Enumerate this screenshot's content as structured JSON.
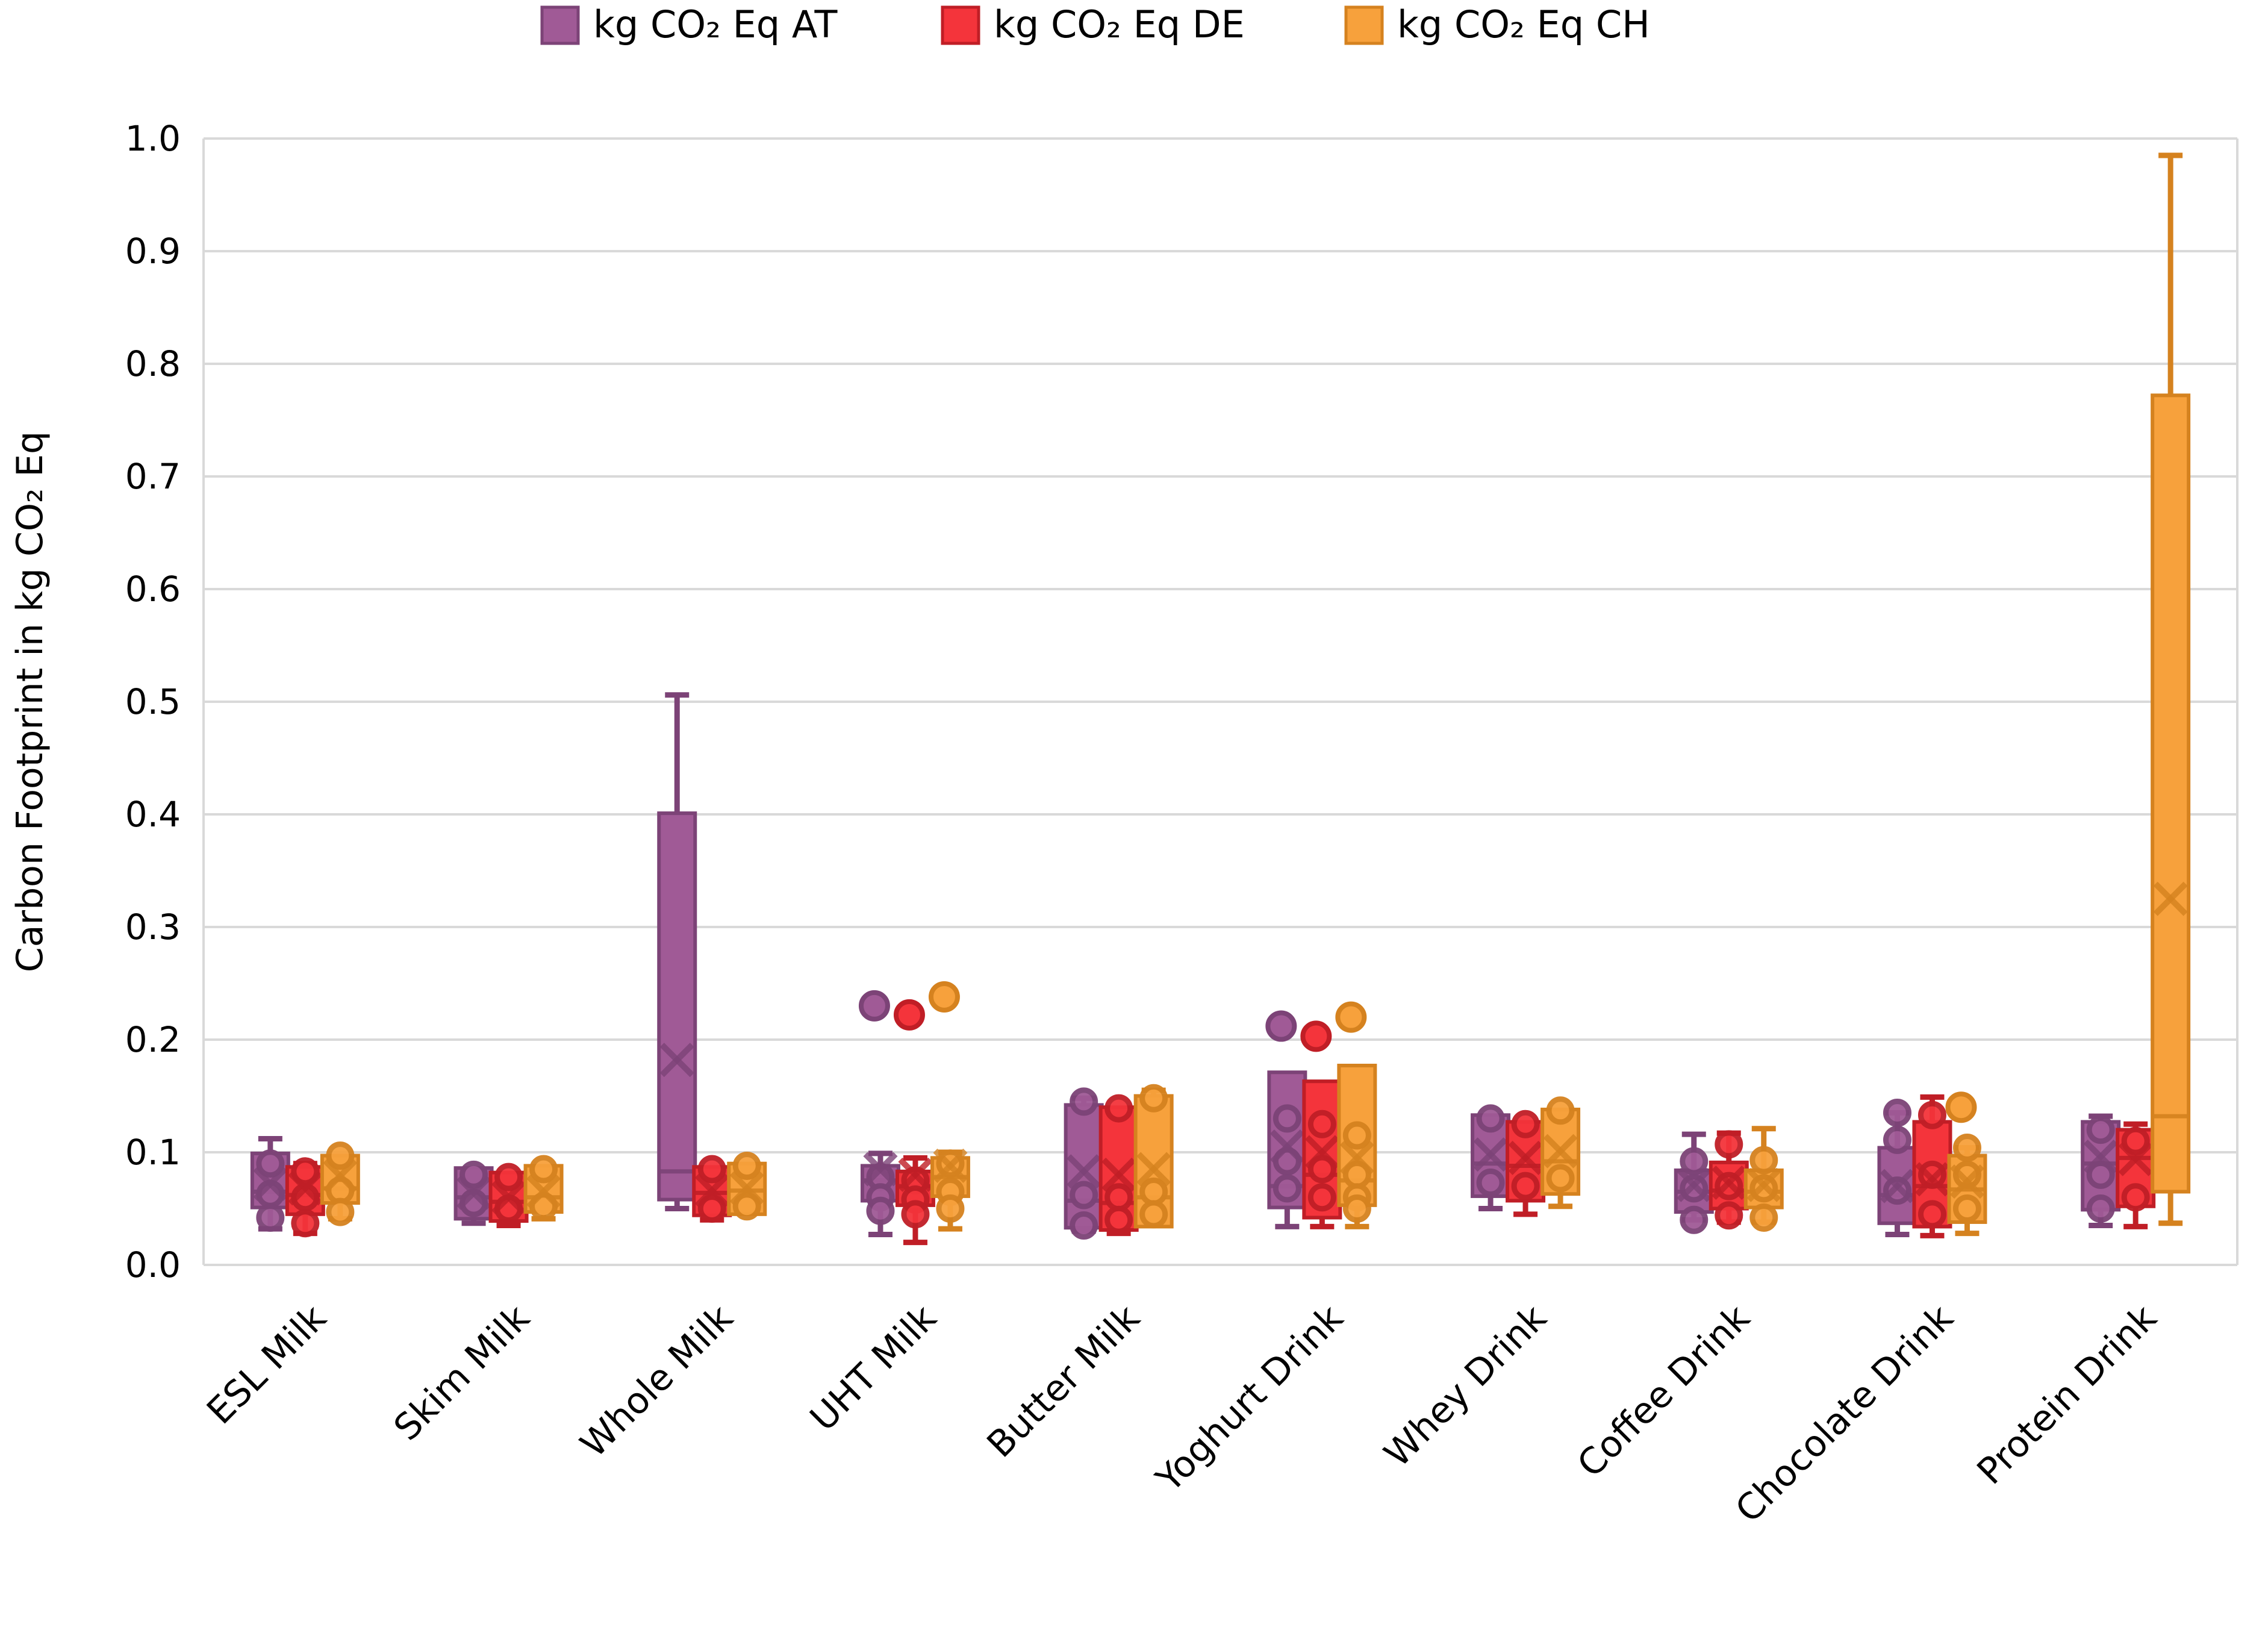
{
  "background": "#FFFFFF",
  "colors": {
    "gridline": "#D9D9D9",
    "text": "#000000",
    "at_fill": "#A05A96",
    "at_stroke": "#7C4377",
    "de_fill": "#F4343B",
    "de_stroke": "#C01E26",
    "ch_fill": "#F7A13C",
    "ch_stroke": "#D5821F"
  },
  "chart_data": {
    "type": "boxplot",
    "title": "",
    "ylabel": "Carbon Footprint in kg CO₂ Eq",
    "xlabel": "",
    "ylim": [
      0.0,
      1.0
    ],
    "ytick_labels": [
      "0.0",
      "0.1",
      "0.2",
      "0.3",
      "0.4",
      "0.5",
      "0.6",
      "0.7",
      "0.8",
      "0.9",
      "1.0"
    ],
    "grid": "horizontal",
    "legend_position": "top-center",
    "categories": [
      "ESL Milk",
      "Skim Milk",
      "Whole Milk",
      "UHT Milk",
      "Butter Milk",
      "Yoghurt Drink",
      "Whey Drink",
      "Coffee Drink",
      "Chocolate Drink",
      "Protein Drink"
    ],
    "series": [
      {
        "name": "kg CO₂ Eq AT",
        "fill": "#A05A96",
        "stroke": "#7C4377",
        "boxes": [
          {
            "low": 0.032,
            "q1": 0.051,
            "median": 0.065,
            "q3": 0.099,
            "high": 0.112,
            "mean": 0.072,
            "points": [
              0.09,
              0.063,
              0.042
            ],
            "outliers": []
          },
          {
            "low": 0.037,
            "q1": 0.041,
            "median": 0.06,
            "q3": 0.086,
            "high": 0.086,
            "mean": 0.064,
            "points": [
              0.08,
              0.055
            ],
            "outliers": []
          },
          {
            "low": 0.05,
            "q1": 0.058,
            "median": 0.083,
            "q3": 0.401,
            "high": 0.506,
            "mean": 0.182,
            "points": [],
            "outliers": []
          },
          {
            "low": 0.027,
            "q1": 0.057,
            "median": 0.075,
            "q3": 0.088,
            "high": 0.099,
            "mean": 0.085,
            "points": [
              0.078,
              0.06,
              0.048
            ],
            "outliers": [
              0.23
            ]
          },
          {
            "low": 0.03,
            "q1": 0.033,
            "median": 0.057,
            "q3": 0.142,
            "high": 0.148,
            "mean": 0.083,
            "points": [
              0.145,
              0.062,
              0.035
            ],
            "outliers": []
          },
          {
            "low": 0.034,
            "q1": 0.051,
            "median": 0.07,
            "q3": 0.171,
            "high": 0.171,
            "mean": 0.105,
            "points": [
              0.13,
              0.092,
              0.068
            ],
            "outliers": [
              0.212
            ]
          },
          {
            "low": 0.05,
            "q1": 0.061,
            "median": 0.09,
            "q3": 0.133,
            "high": 0.133,
            "mean": 0.098,
            "points": [
              0.13,
              0.073
            ],
            "outliers": []
          },
          {
            "low": 0.04,
            "q1": 0.047,
            "median": 0.065,
            "q3": 0.084,
            "high": 0.116,
            "mean": 0.071,
            "points": [
              0.092,
              0.068,
              0.04
            ],
            "outliers": []
          },
          {
            "low": 0.027,
            "q1": 0.037,
            "median": 0.062,
            "q3": 0.104,
            "high": 0.135,
            "mean": 0.07,
            "points": [
              0.135,
              0.111,
              0.066
            ],
            "outliers": []
          },
          {
            "low": 0.035,
            "q1": 0.049,
            "median": 0.09,
            "q3": 0.127,
            "high": 0.132,
            "mean": 0.096,
            "points": [
              0.12,
              0.08,
              0.05
            ],
            "outliers": []
          }
        ]
      },
      {
        "name": "kg CO₂ Eq DE",
        "fill": "#F4343B",
        "stroke": "#C01E26",
        "boxes": [
          {
            "low": 0.028,
            "q1": 0.045,
            "median": 0.062,
            "q3": 0.087,
            "high": 0.09,
            "mean": 0.068,
            "points": [
              0.083,
              0.06,
              0.037
            ],
            "outliers": []
          },
          {
            "low": 0.035,
            "q1": 0.039,
            "median": 0.056,
            "q3": 0.082,
            "high": 0.082,
            "mean": 0.06,
            "points": [
              0.078,
              0.05
            ],
            "outliers": []
          },
          {
            "low": 0.04,
            "q1": 0.044,
            "median": 0.064,
            "q3": 0.087,
            "high": 0.087,
            "mean": 0.066,
            "points": [
              0.085,
              0.05
            ],
            "outliers": []
          },
          {
            "low": 0.02,
            "q1": 0.053,
            "median": 0.07,
            "q3": 0.083,
            "high": 0.095,
            "mean": 0.08,
            "points": [
              0.075,
              0.058,
              0.045
            ],
            "outliers": [
              0.222
            ]
          },
          {
            "low": 0.028,
            "q1": 0.031,
            "median": 0.055,
            "q3": 0.14,
            "high": 0.14,
            "mean": 0.08,
            "points": [
              0.139,
              0.06,
              0.04
            ],
            "outliers": []
          },
          {
            "low": 0.034,
            "q1": 0.042,
            "median": 0.08,
            "q3": 0.163,
            "high": 0.163,
            "mean": 0.1,
            "points": [
              0.125,
              0.085,
              0.06
            ],
            "outliers": [
              0.203
            ]
          },
          {
            "low": 0.045,
            "q1": 0.057,
            "median": 0.088,
            "q3": 0.127,
            "high": 0.127,
            "mean": 0.095,
            "points": [
              0.125,
              0.07
            ],
            "outliers": []
          },
          {
            "low": 0.038,
            "q1": 0.05,
            "median": 0.066,
            "q3": 0.091,
            "high": 0.117,
            "mean": 0.073,
            "points": [
              0.107,
              0.07,
              0.044
            ],
            "outliers": []
          },
          {
            "low": 0.026,
            "q1": 0.034,
            "median": 0.07,
            "q3": 0.127,
            "high": 0.149,
            "mean": 0.076,
            "points": [
              0.133,
              0.08,
              0.045
            ],
            "outliers": []
          },
          {
            "low": 0.034,
            "q1": 0.052,
            "median": 0.095,
            "q3": 0.12,
            "high": 0.125,
            "mean": 0.094,
            "points": [
              0.11,
              0.06
            ],
            "outliers": []
          }
        ]
      },
      {
        "name": "kg CO₂ Eq CH",
        "fill": "#F7A13C",
        "stroke": "#D5821F",
        "boxes": [
          {
            "low": 0.041,
            "q1": 0.055,
            "median": 0.068,
            "q3": 0.097,
            "high": 0.097,
            "mean": 0.079,
            "points": [
              0.097,
              0.066,
              0.047
            ],
            "outliers": []
          },
          {
            "low": 0.041,
            "q1": 0.047,
            "median": 0.06,
            "q3": 0.088,
            "high": 0.088,
            "mean": 0.065,
            "points": [
              0.085,
              0.052
            ],
            "outliers": []
          },
          {
            "low": 0.045,
            "q1": 0.045,
            "median": 0.066,
            "q3": 0.09,
            "high": 0.09,
            "mean": 0.068,
            "points": [
              0.088,
              0.052
            ],
            "outliers": []
          },
          {
            "low": 0.032,
            "q1": 0.061,
            "median": 0.078,
            "q3": 0.095,
            "high": 0.1,
            "mean": 0.088,
            "points": [
              0.09,
              0.065,
              0.05
            ],
            "outliers": [
              0.238
            ]
          },
          {
            "low": 0.034,
            "q1": 0.034,
            "median": 0.06,
            "q3": 0.15,
            "high": 0.155,
            "mean": 0.085,
            "points": [
              0.148,
              0.065,
              0.045
            ],
            "outliers": []
          },
          {
            "low": 0.034,
            "q1": 0.053,
            "median": 0.075,
            "q3": 0.177,
            "high": 0.177,
            "mean": 0.095,
            "points": [
              0.115,
              0.08,
              0.06,
              0.05
            ],
            "outliers": [
              0.22
            ]
          },
          {
            "low": 0.052,
            "q1": 0.063,
            "median": 0.092,
            "q3": 0.138,
            "high": 0.138,
            "mean": 0.101,
            "points": [
              0.137,
              0.077
            ],
            "outliers": []
          },
          {
            "low": 0.038,
            "q1": 0.051,
            "median": 0.065,
            "q3": 0.084,
            "high": 0.121,
            "mean": 0.071,
            "points": [
              0.093,
              0.068,
              0.042
            ],
            "outliers": []
          },
          {
            "low": 0.028,
            "q1": 0.038,
            "median": 0.067,
            "q3": 0.097,
            "high": 0.104,
            "mean": 0.074,
            "points": [
              0.104,
              0.08,
              0.05
            ],
            "outliers": [
              0.14
            ]
          },
          {
            "low": 0.037,
            "q1": 0.065,
            "median": 0.132,
            "q3": 0.772,
            "high": 0.985,
            "mean": 0.325,
            "points": [],
            "outliers": []
          }
        ]
      }
    ]
  }
}
